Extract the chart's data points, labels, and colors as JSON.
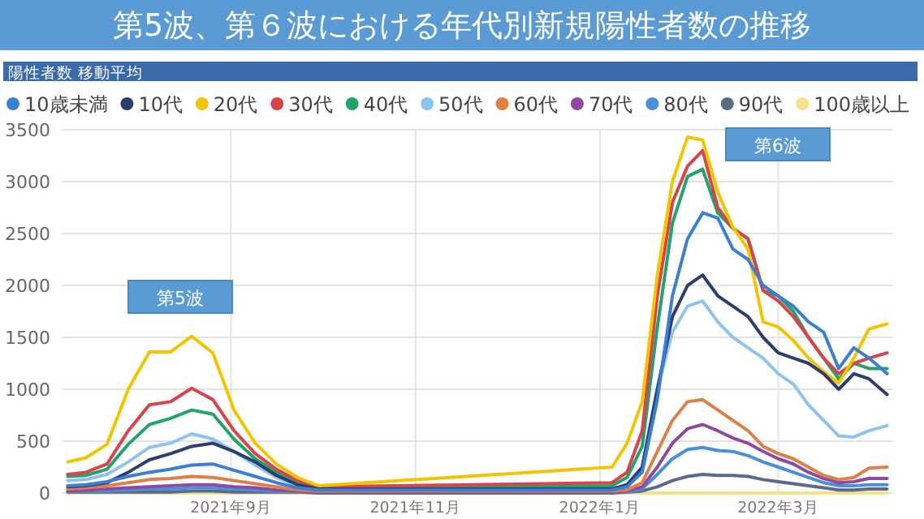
{
  "chart_data": {
    "type": "line",
    "title": "第5波、第６波における年代別新規陽性者数の推移",
    "subtitle": "陽性者数 移動平均",
    "x": [
      "2021-07-09",
      "2021-07-15",
      "2021-07-22",
      "2021-07-29",
      "2021-08-05",
      "2021-08-12",
      "2021-08-19",
      "2021-08-26",
      "2021-09-02",
      "2021-09-09",
      "2021-09-16",
      "2021-09-23",
      "2021-09-30",
      "2022-01-05",
      "2022-01-10",
      "2022-01-15",
      "2022-01-20",
      "2022-01-25",
      "2022-01-30",
      "2022-02-04",
      "2022-02-09",
      "2022-02-14",
      "2022-02-19",
      "2022-02-24",
      "2022-03-01",
      "2022-03-06",
      "2022-03-11",
      "2022-03-16",
      "2022-03-21",
      "2022-03-26",
      "2022-03-31",
      "2022-04-06"
    ],
    "series": [
      {
        "name": "10歳未満",
        "color": "#3a7fd5",
        "values": [
          70,
          80,
          110,
          160,
          200,
          230,
          270,
          280,
          220,
          160,
          100,
          50,
          30,
          30,
          60,
          200,
          900,
          1900,
          2450,
          2700,
          2650,
          2350,
          2250,
          2000,
          1900,
          1800,
          1650,
          1550,
          1200,
          1400,
          1300,
          1150
        ]
      },
      {
        "name": "10代",
        "color": "#2c3e6e",
        "values": [
          60,
          70,
          100,
          200,
          320,
          380,
          450,
          480,
          400,
          300,
          170,
          80,
          40,
          40,
          80,
          250,
          1000,
          1700,
          2000,
          2100,
          1900,
          1800,
          1700,
          1500,
          1350,
          1300,
          1250,
          1150,
          1000,
          1150,
          1100,
          950
        ]
      },
      {
        "name": "20代",
        "color": "#f2c500",
        "values": [
          300,
          340,
          470,
          1000,
          1360,
          1360,
          1510,
          1350,
          800,
          480,
          280,
          150,
          70,
          250,
          480,
          880,
          2100,
          3000,
          3430,
          3400,
          2900,
          2560,
          2350,
          1650,
          1600,
          1470,
          1300,
          1170,
          1060,
          1300,
          1580,
          1630
        ]
      },
      {
        "name": "30代",
        "color": "#d9434a",
        "values": [
          180,
          200,
          280,
          600,
          850,
          880,
          1010,
          900,
          600,
          380,
          230,
          120,
          60,
          100,
          200,
          600,
          1900,
          2800,
          3150,
          3300,
          2750,
          2550,
          2450,
          1950,
          1850,
          1700,
          1500,
          1300,
          1150,
          1250,
          1300,
          1350
        ]
      },
      {
        "name": "40代",
        "color": "#22a36a",
        "values": [
          160,
          170,
          230,
          470,
          660,
          720,
          800,
          760,
          520,
          330,
          200,
          100,
          50,
          70,
          150,
          450,
          1600,
          2600,
          3050,
          3120,
          2700,
          2550,
          2450,
          1950,
          1900,
          1750,
          1500,
          1300,
          1100,
          1250,
          1200,
          1200
        ]
      },
      {
        "name": "50代",
        "color": "#8ec4ec",
        "values": [
          120,
          130,
          180,
          300,
          440,
          480,
          570,
          520,
          400,
          270,
          150,
          70,
          40,
          40,
          80,
          250,
          1000,
          1550,
          1800,
          1850,
          1650,
          1500,
          1400,
          1300,
          1150,
          1050,
          850,
          700,
          550,
          540,
          600,
          650
        ]
      },
      {
        "name": "60代",
        "color": "#e07f45",
        "values": [
          40,
          50,
          70,
          100,
          130,
          140,
          160,
          150,
          120,
          90,
          60,
          30,
          20,
          20,
          30,
          100,
          400,
          700,
          880,
          900,
          800,
          700,
          600,
          450,
          380,
          330,
          250,
          170,
          130,
          150,
          240,
          250
        ]
      },
      {
        "name": "70代",
        "color": "#8e4aa0",
        "values": [
          20,
          30,
          40,
          50,
          60,
          70,
          80,
          80,
          60,
          50,
          30,
          20,
          10,
          10,
          20,
          60,
          250,
          480,
          620,
          660,
          600,
          530,
          480,
          400,
          330,
          280,
          200,
          140,
          100,
          110,
          140,
          140
        ]
      },
      {
        "name": "80代",
        "color": "#4a8fd9",
        "values": [
          20,
          20,
          20,
          30,
          40,
          40,
          50,
          50,
          40,
          30,
          20,
          10,
          10,
          10,
          10,
          40,
          180,
          330,
          420,
          440,
          410,
          400,
          360,
          300,
          250,
          200,
          150,
          100,
          70,
          70,
          80,
          80
        ]
      },
      {
        "name": "90代",
        "color": "#5a6a8a",
        "values": [
          10,
          10,
          10,
          10,
          10,
          10,
          20,
          20,
          10,
          10,
          10,
          10,
          0,
          0,
          10,
          20,
          60,
          120,
          160,
          180,
          170,
          170,
          160,
          130,
          110,
          90,
          70,
          50,
          30,
          30,
          40,
          40
        ]
      },
      {
        "name": "100歳以上",
        "color": "#f5e08c",
        "values": [
          0,
          0,
          0,
          0,
          0,
          0,
          0,
          0,
          0,
          0,
          0,
          0,
          0,
          0,
          0,
          0,
          0,
          0,
          0,
          0,
          0,
          0,
          0,
          0,
          0,
          0,
          0,
          0,
          0,
          0,
          0,
          0
        ]
      }
    ],
    "xlim": [
      "2021-07-07",
      "2022-04-08"
    ],
    "xticks": [
      {
        "value": "2021-09-01",
        "label": "2021年9月"
      },
      {
        "value": "2021-11-01",
        "label": "2021年11月"
      },
      {
        "value": "2022-01-01",
        "label": "2022年1月"
      },
      {
        "value": "2022-03-01",
        "label": "2022年3月"
      }
    ],
    "ylim": [
      0,
      3500
    ],
    "yticks": [
      0,
      500,
      1000,
      1500,
      2000,
      2500,
      3000,
      3500
    ],
    "grid": true,
    "legend": "top",
    "annotations": [
      "第5波",
      "第6波"
    ]
  }
}
